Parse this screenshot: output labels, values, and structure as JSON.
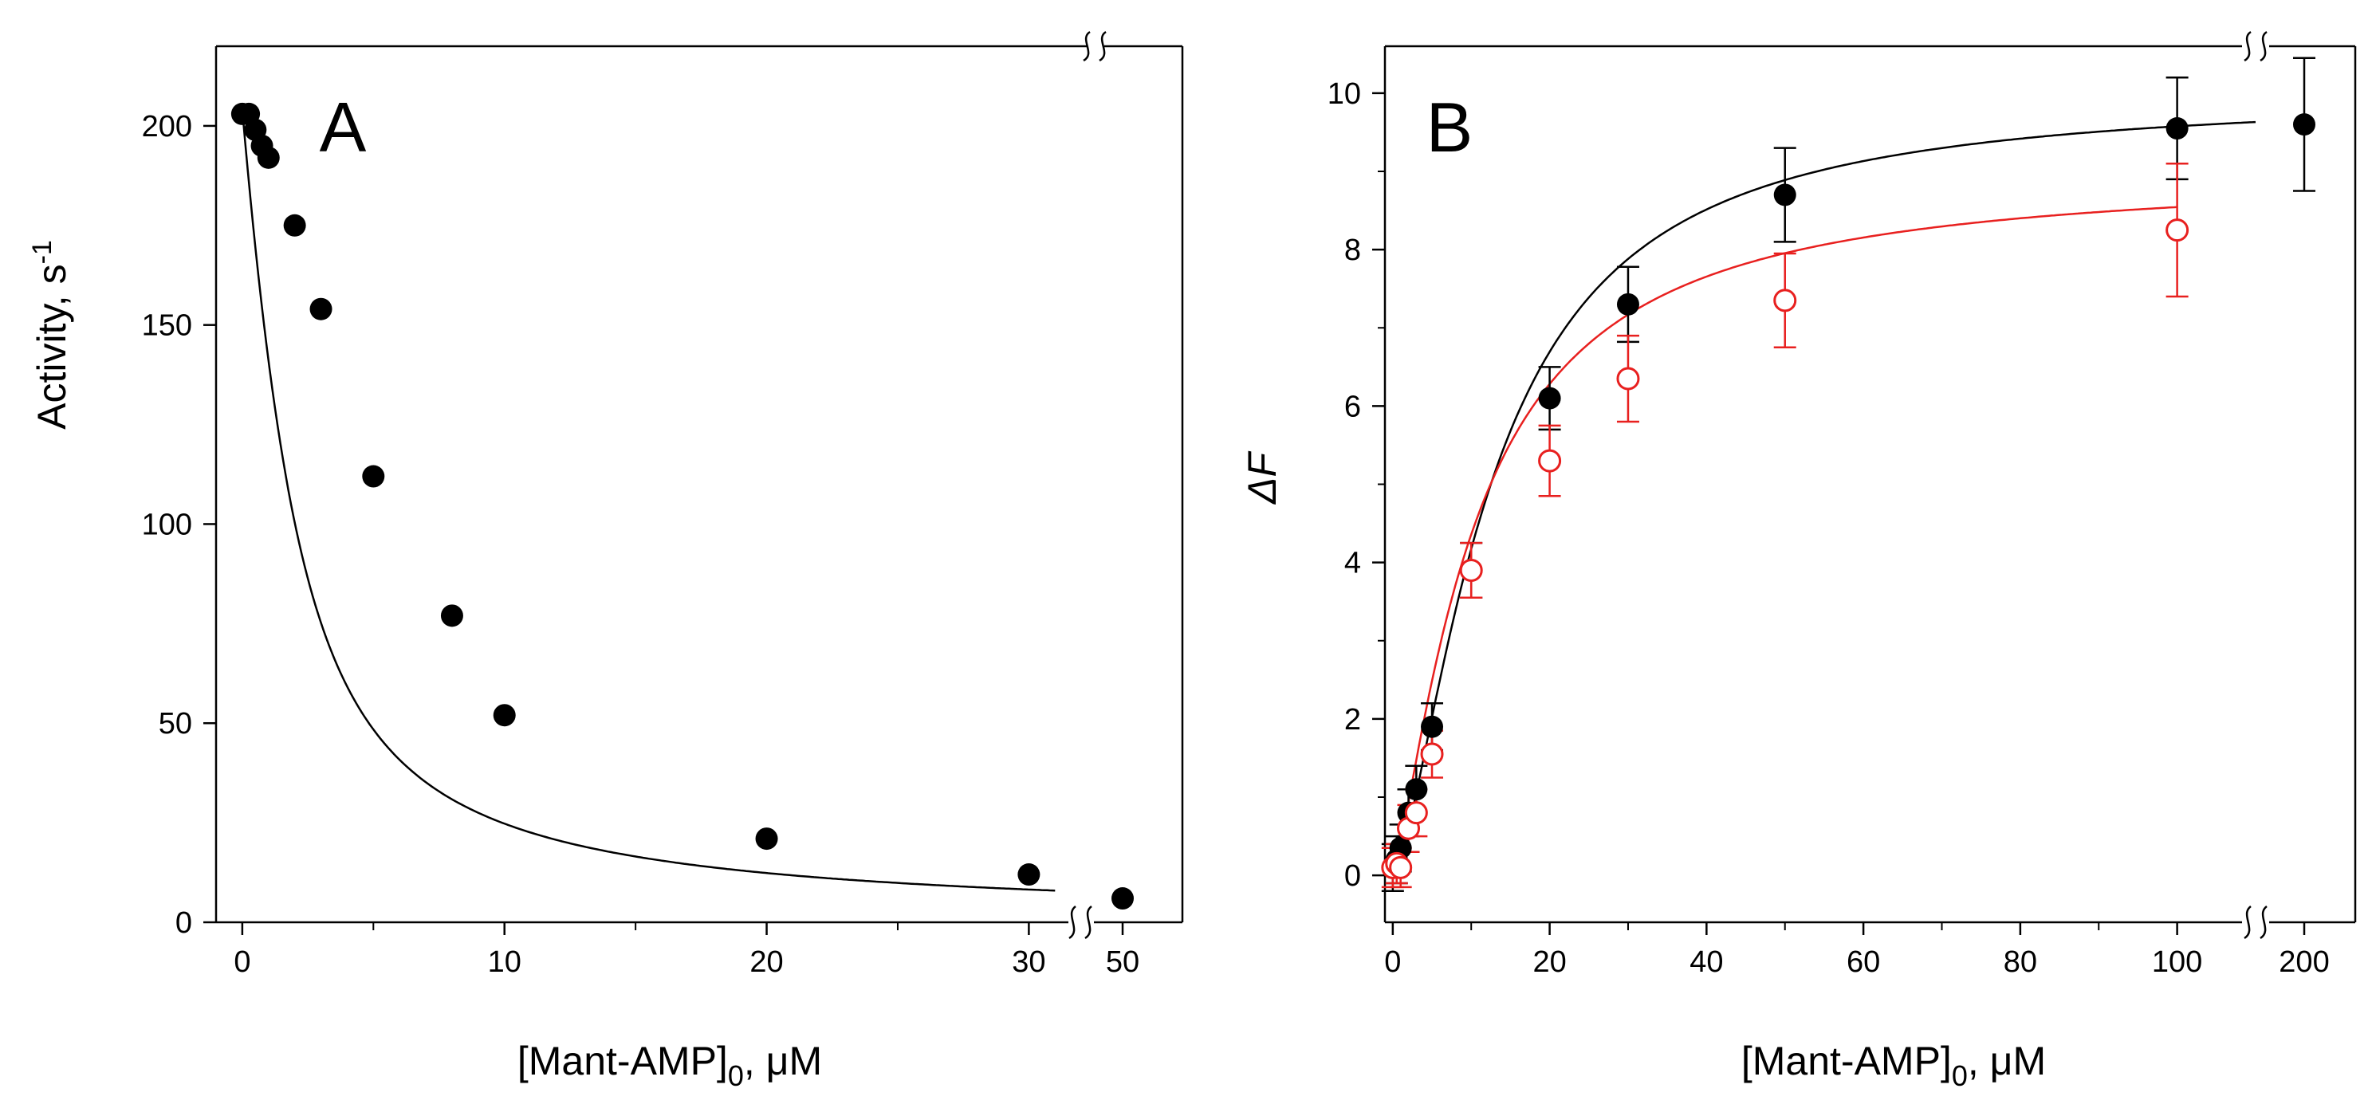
{
  "chart_data": [
    {
      "type": "scatter",
      "panel_label": "A",
      "xlabel_main": "[Mant-AMP]",
      "xlabel_sub": "0",
      "xlabel_tail": ", μM",
      "ylabel_main": "Activity, s",
      "ylabel_sup": "-1",
      "xlim": [
        -1,
        34
      ],
      "ylim": [
        0,
        220
      ],
      "axis_break_x": "between 30 and 50",
      "xticks": [
        0,
        10,
        20,
        30,
        50
      ],
      "xtick_labels": [
        "0",
        "10",
        "20",
        "30",
        "50"
      ],
      "yticks": [
        0,
        50,
        100,
        150,
        200
      ],
      "ytick_labels": [
        "0",
        "50",
        "100",
        "150",
        "200"
      ],
      "series": [
        {
          "name": "activity",
          "color": "#000000",
          "marker": "filled-circle",
          "x": [
            0,
            0.25,
            0.5,
            0.75,
            1,
            2,
            3,
            5,
            8,
            10,
            20,
            30,
            50
          ],
          "y": [
            203,
            203,
            199,
            195,
            192,
            175,
            154,
            112,
            77,
            52,
            21,
            12,
            6
          ]
        }
      ],
      "fit_curve": {
        "color": "#000000",
        "x_range": [
          0,
          31
        ],
        "model": "tight-binding inhibition",
        "v0": 204,
        "enzyme": 1.5,
        "kd": 1.2
      }
    },
    {
      "type": "scatter",
      "panel_label": "B",
      "xlabel_main": "[Mant-AMP]",
      "xlabel_sub": "0",
      "xlabel_tail": ", μM",
      "ylabel": "ΔF",
      "xlim": [
        -1,
        120
      ],
      "ylim": [
        -0.6,
        10.6
      ],
      "axis_break_x": "between 100 and 200",
      "xticks": [
        0,
        20,
        40,
        60,
        80,
        100,
        200
      ],
      "xtick_labels": [
        "0",
        "20",
        "40",
        "60",
        "80",
        "100",
        "200"
      ],
      "yticks": [
        0,
        2,
        4,
        6,
        8,
        10
      ],
      "ytick_labels": [
        "0",
        "2",
        "4",
        "6",
        "8",
        "10"
      ],
      "series": [
        {
          "name": "filled",
          "color": "#000000",
          "marker": "filled-circle",
          "x": [
            0,
            0.5,
            1,
            2,
            3,
            5,
            10,
            20,
            30,
            50,
            100,
            200
          ],
          "y": [
            0.1,
            0.2,
            0.35,
            0.8,
            1.1,
            1.9,
            3.9,
            6.1,
            7.3,
            8.7,
            9.55,
            9.6
          ],
          "err": [
            0.3,
            0.3,
            0.3,
            0.3,
            0.3,
            0.3,
            0.35,
            0.4,
            0.48,
            0.6,
            0.65,
            0.85
          ]
        },
        {
          "name": "open",
          "color": "#e8201f",
          "marker": "open-circle",
          "x": [
            0,
            0.5,
            1,
            2,
            3,
            5,
            10,
            20,
            30,
            50,
            100
          ],
          "y": [
            0.1,
            0.15,
            0.1,
            0.6,
            0.8,
            1.55,
            3.9,
            5.3,
            6.35,
            7.35,
            8.25
          ],
          "err": [
            0.25,
            0.25,
            0.25,
            0.3,
            0.3,
            0.3,
            0.35,
            0.45,
            0.55,
            0.6,
            0.85
          ]
        }
      ],
      "fit_curves": [
        {
          "color": "#000000",
          "x_range": [
            0,
            110
          ],
          "model": "hyperbolic",
          "max": 10.0,
          "kd": 12.5,
          "exp": 1.5
        },
        {
          "color": "#e8201f",
          "x_range": [
            0,
            100
          ],
          "model": "hyperbolic",
          "max": 9.0,
          "kd": 10.5,
          "exp": 1.3
        }
      ]
    }
  ]
}
